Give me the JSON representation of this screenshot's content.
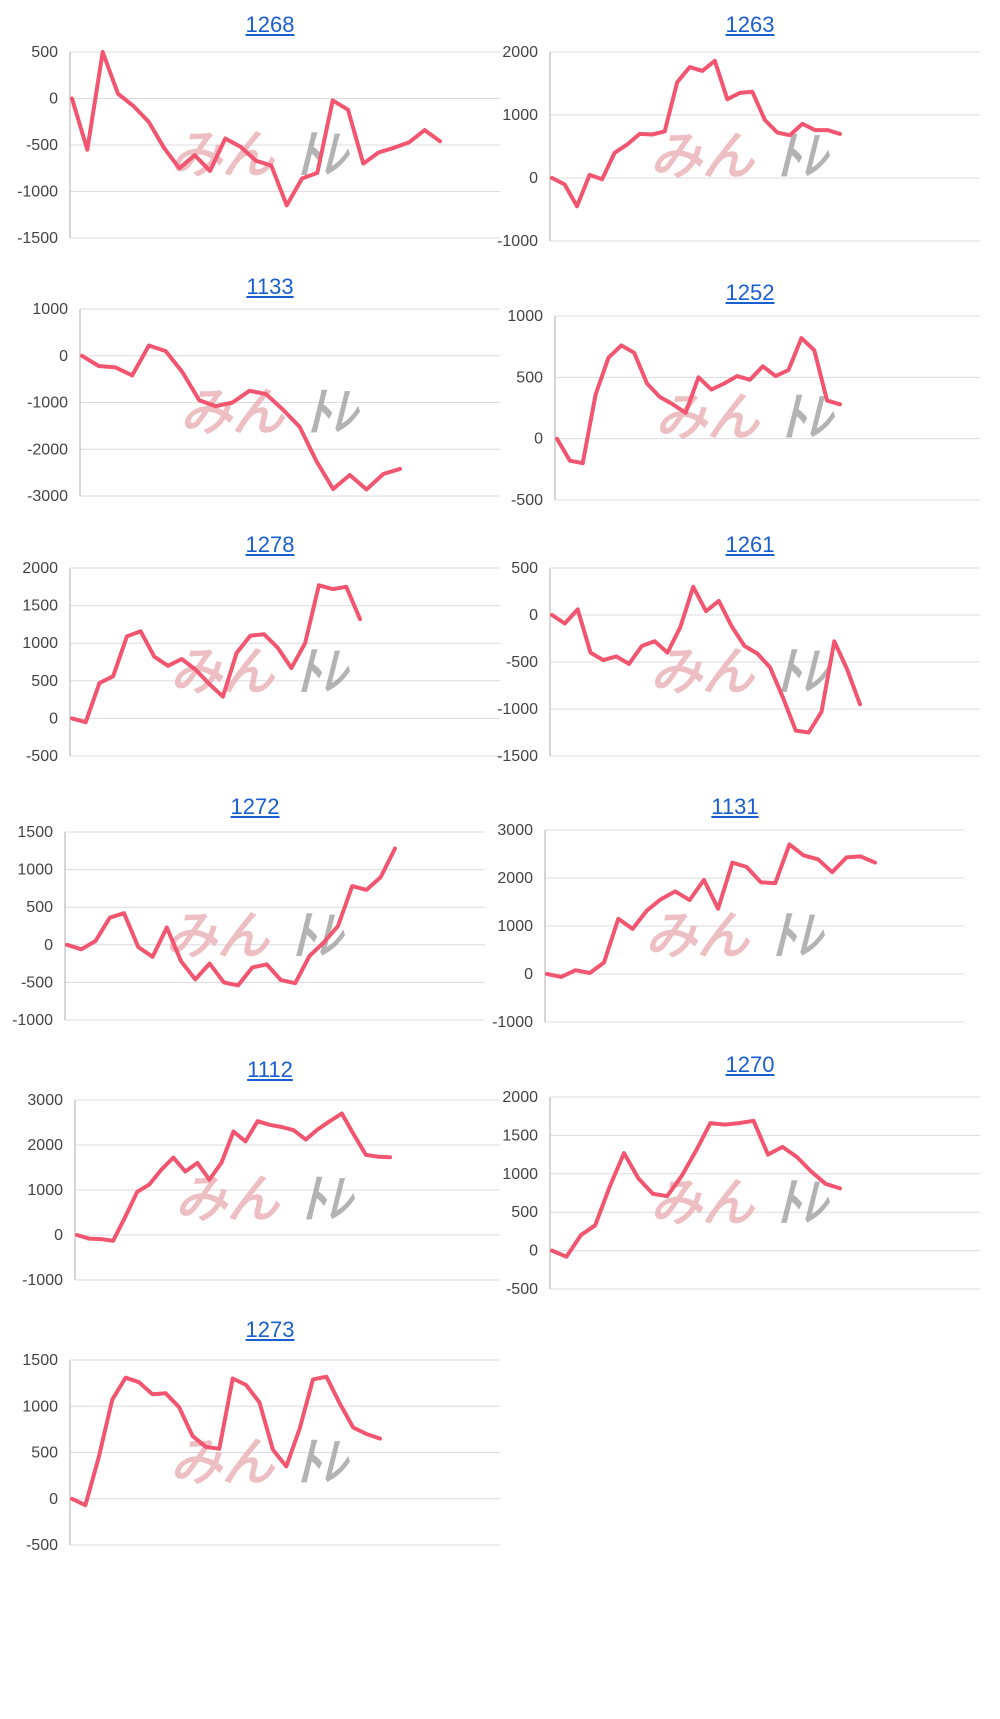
{
  "colors": {
    "line": "#f2556f",
    "grid": "#dcdcdc",
    "title": "#1a5fd0",
    "watermark_red": "#eab3b8",
    "watermark_gray": "#9a9a9a"
  },
  "watermark": {
    "part1": "みん",
    "part2": "ﾄﾚ"
  },
  "chart_data": [
    {
      "type": "line",
      "title": "1268",
      "ylim": [
        -1500,
        500
      ],
      "yticks": [
        500,
        0,
        -500,
        -1000,
        -1500
      ],
      "values": [
        0,
        -550,
        500,
        50,
        -80,
        -250,
        -530,
        -750,
        -610,
        -780,
        -430,
        -520,
        -670,
        -720,
        -1150,
        -860,
        -800,
        -20,
        -120,
        -700,
        -580,
        -530,
        -470,
        -340,
        -460
      ]
    },
    {
      "type": "line",
      "title": "1263",
      "ylim": [
        -1000,
        2000
      ],
      "yticks": [
        2000,
        1000,
        0,
        -1000
      ],
      "values": [
        0,
        -100,
        -450,
        50,
        -20,
        400,
        530,
        700,
        690,
        740,
        1520,
        1760,
        1700,
        1860,
        1250,
        1350,
        1370,
        920,
        720,
        680,
        860,
        760,
        760,
        700
      ]
    },
    {
      "type": "line",
      "title": "1133",
      "ylim": [
        -3000,
        1000
      ],
      "yticks": [
        1000,
        0,
        -1000,
        -2000,
        -3000
      ],
      "values": [
        0,
        -220,
        -250,
        -420,
        220,
        100,
        -350,
        -950,
        -1080,
        -1000,
        -750,
        -820,
        -1150,
        -1520,
        -2250,
        -2850,
        -2550,
        -2860,
        -2530,
        -2420
      ]
    },
    {
      "type": "line",
      "title": "1252",
      "ylim": [
        -500,
        1000
      ],
      "yticks": [
        1000,
        500,
        0,
        -500
      ],
      "values": [
        0,
        -180,
        -200,
        360,
        660,
        760,
        700,
        450,
        340,
        280,
        210,
        500,
        400,
        450,
        510,
        480,
        590,
        510,
        560,
        820,
        720,
        310,
        280
      ]
    },
    {
      "type": "line",
      "title": "1278",
      "ylim": [
        -500,
        2000
      ],
      "yticks": [
        2000,
        1500,
        1000,
        500,
        0,
        -500
      ],
      "values": [
        0,
        -50,
        470,
        560,
        1090,
        1160,
        820,
        700,
        790,
        650,
        460,
        290,
        870,
        1100,
        1120,
        940,
        670,
        1000,
        1770,
        1720,
        1750,
        1320
      ]
    },
    {
      "type": "line",
      "title": "1261",
      "ylim": [
        -1500,
        500
      ],
      "yticks": [
        500,
        0,
        -500,
        -1000,
        -1500
      ],
      "values": [
        0,
        -90,
        60,
        -400,
        -480,
        -440,
        -520,
        -330,
        -280,
        -400,
        -130,
        300,
        40,
        150,
        -120,
        -330,
        -410,
        -560,
        -880,
        -1230,
        -1250,
        -1030,
        -280,
        -580,
        -950
      ]
    },
    {
      "type": "line",
      "title": "1272",
      "ylim": [
        -1000,
        1500
      ],
      "yticks": [
        1500,
        1000,
        500,
        0,
        -500,
        -1000
      ],
      "values": [
        0,
        -60,
        50,
        360,
        420,
        -30,
        -160,
        230,
        -220,
        -460,
        -250,
        -500,
        -540,
        -300,
        -260,
        -470,
        -510,
        -150,
        30,
        250,
        780,
        730,
        900,
        1280
      ]
    },
    {
      "type": "line",
      "title": "1131",
      "ylim": [
        -1000,
        3000
      ],
      "yticks": [
        3000,
        2000,
        1000,
        0,
        -1000
      ],
      "values": [
        0,
        -60,
        80,
        20,
        240,
        1150,
        940,
        1320,
        1560,
        1720,
        1540,
        1960,
        1360,
        2320,
        2230,
        1910,
        1890,
        2700,
        2470,
        2390,
        2120,
        2430,
        2450,
        2320
      ]
    },
    {
      "type": "line",
      "title": "1112",
      "ylim": [
        -1000,
        3000
      ],
      "yticks": [
        3000,
        2000,
        1000,
        0,
        -1000
      ],
      "values": [
        0,
        -80,
        -90,
        -130,
        400,
        960,
        1120,
        1450,
        1720,
        1410,
        1600,
        1230,
        1610,
        2300,
        2080,
        2530,
        2450,
        2400,
        2330,
        2120,
        2350,
        2530,
        2700,
        2230,
        1780,
        1740,
        1730
      ]
    },
    {
      "type": "line",
      "title": "1270",
      "ylim": [
        -500,
        2000
      ],
      "yticks": [
        2000,
        1500,
        1000,
        500,
        0,
        -500
      ],
      "values": [
        0,
        -80,
        200,
        330,
        830,
        1270,
        940,
        740,
        710,
        970,
        1300,
        1660,
        1640,
        1660,
        1690,
        1250,
        1350,
        1220,
        1030,
        870,
        810
      ]
    },
    {
      "type": "line",
      "title": "1273",
      "ylim": [
        -500,
        1500
      ],
      "yticks": [
        1500,
        1000,
        500,
        0,
        -500
      ],
      "values": [
        0,
        -70,
        450,
        1070,
        1310,
        1260,
        1130,
        1140,
        990,
        680,
        560,
        540,
        1300,
        1230,
        1040,
        530,
        350,
        760,
        1290,
        1320,
        1030,
        770,
        700,
        650
      ]
    }
  ]
}
